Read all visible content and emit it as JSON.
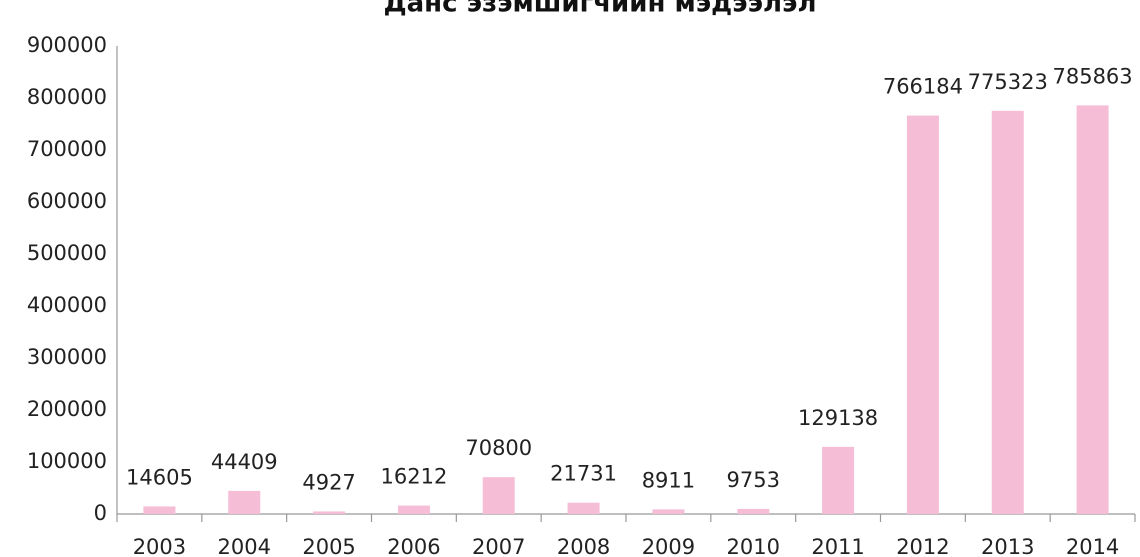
{
  "chart_data": {
    "type": "bar",
    "title": "Данс эзэмшигчийн мэдээлэл",
    "categories": [
      "2003",
      "2004",
      "2005",
      "2006",
      "2007",
      "2008",
      "2009",
      "2010",
      "2011",
      "2012",
      "2013",
      "2014"
    ],
    "values": [
      14605,
      44409,
      4927,
      16212,
      70800,
      21731,
      8911,
      9753,
      129138,
      766184,
      775323,
      785863
    ],
    "color": "#f6bdd6",
    "ylim": [
      0,
      900000
    ],
    "yticks": [
      0,
      100000,
      200000,
      300000,
      400000,
      500000,
      600000,
      700000,
      800000,
      900000
    ],
    "grid": false
  }
}
